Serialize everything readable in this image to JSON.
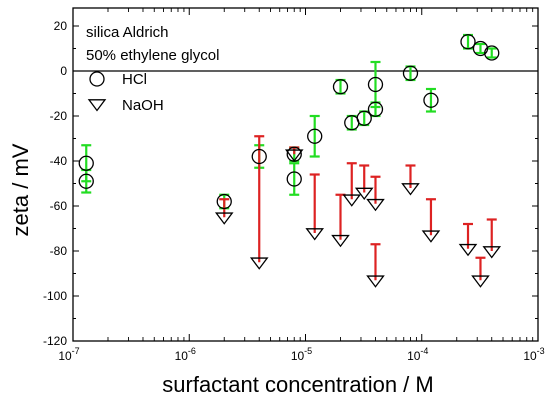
{
  "chart_data": {
    "type": "scatter",
    "xscale": "log",
    "xlim": [
      1e-07,
      0.001
    ],
    "ylim": [
      -120,
      28
    ],
    "y_ticks": [
      20,
      0,
      -20,
      -40,
      -60,
      -80,
      -100,
      -120
    ],
    "x_ticks": [
      {
        "value": 1e-07,
        "base": "10",
        "exp": "-7"
      },
      {
        "value": 1e-06,
        "base": "10",
        "exp": "-6"
      },
      {
        "value": 1e-05,
        "base": "10",
        "exp": "-5"
      },
      {
        "value": 0.0001,
        "base": "10",
        "exp": "-4"
      },
      {
        "value": 0.001,
        "base": "10",
        "exp": "-3"
      }
    ],
    "xlabel": "surfactant concentration / M",
    "ylabel": "zeta / mV",
    "annotations": [
      "silica Aldrich",
      "50% ethylene glycol"
    ],
    "zero_line": true,
    "legend_placement": "top-left",
    "series": [
      {
        "name": "HCl",
        "marker": "circle",
        "error_color": "#22dd22",
        "error_style": "symmetric",
        "points": [
          {
            "x": 1.3e-07,
            "y": -41,
            "err": 8
          },
          {
            "x": 1.3e-07,
            "y": -49,
            "err": 5
          },
          {
            "x": 2e-06,
            "y": -58,
            "err": 3
          },
          {
            "x": 4e-06,
            "y": -38,
            "err": 5
          },
          {
            "x": 8e-06,
            "y": -48,
            "err": 7
          },
          {
            "x": 8e-06,
            "y": -37,
            "err": 3
          },
          {
            "x": 1.2e-05,
            "y": -29,
            "err": 9
          },
          {
            "x": 2e-05,
            "y": -7,
            "err": 3
          },
          {
            "x": 2.5e-05,
            "y": -23,
            "err": 3
          },
          {
            "x": 3.2e-05,
            "y": -21,
            "err": 3
          },
          {
            "x": 4e-05,
            "y": -17,
            "err": 3
          },
          {
            "x": 4e-05,
            "y": -6,
            "err": 10
          },
          {
            "x": 8e-05,
            "y": -1,
            "err": 3
          },
          {
            "x": 0.00012,
            "y": -13,
            "err": 5
          },
          {
            "x": 0.00025,
            "y": 13,
            "err": 3
          },
          {
            "x": 0.00032,
            "y": 10,
            "err": 2
          },
          {
            "x": 0.0004,
            "y": 8,
            "err": 2
          }
        ]
      },
      {
        "name": "NaOH",
        "marker": "triangle-down",
        "error_color": "#dd2222",
        "error_style": "upper",
        "points": [
          {
            "x": 2e-06,
            "y": -65,
            "err": 8
          },
          {
            "x": 4e-06,
            "y": -85,
            "err": 56
          },
          {
            "x": 8e-06,
            "y": -37,
            "err": 3
          },
          {
            "x": 1.2e-05,
            "y": -72,
            "err": 26
          },
          {
            "x": 2e-05,
            "y": -75,
            "err": 20
          },
          {
            "x": 2.5e-05,
            "y": -57,
            "err": 16
          },
          {
            "x": 3.2e-05,
            "y": -54,
            "err": 12
          },
          {
            "x": 4e-05,
            "y": -59,
            "err": 12
          },
          {
            "x": 4e-05,
            "y": -93,
            "err": 16
          },
          {
            "x": 8e-05,
            "y": -52,
            "err": 10
          },
          {
            "x": 0.00012,
            "y": -73,
            "err": 16
          },
          {
            "x": 0.00025,
            "y": -79,
            "err": 11
          },
          {
            "x": 0.00032,
            "y": -93,
            "err": 10
          },
          {
            "x": 0.0004,
            "y": -80,
            "err": 14
          }
        ]
      }
    ]
  }
}
